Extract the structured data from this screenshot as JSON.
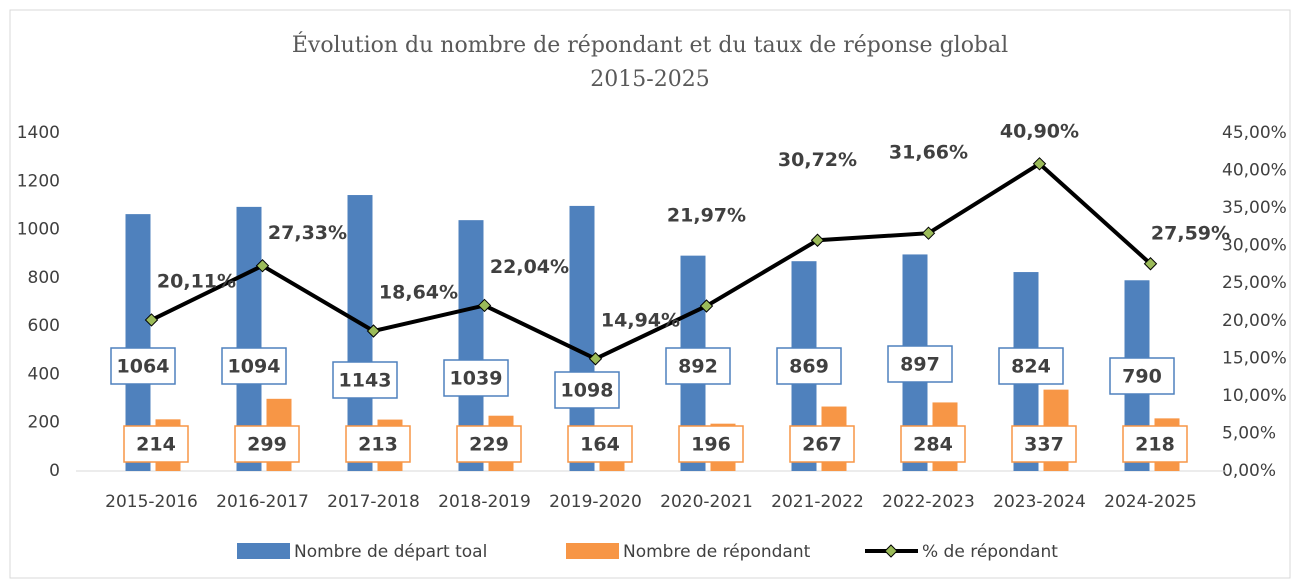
{
  "chart_data": {
    "type": "bar-line",
    "title": "Évolution du nombre de répondant et du taux de réponse global",
    "subtitle": "2015-2025",
    "categories": [
      "2015-2016",
      "2016-2017",
      "2017-2018",
      "2018-2019",
      "2019-2020",
      "2020-2021",
      "2021-2022",
      "2022-2023",
      "2023-2024",
      "2024-2025"
    ],
    "series": [
      {
        "name": "Nombre de départ toal",
        "type": "bar",
        "color": "#4f81bd",
        "values": [
          1064,
          1094,
          1143,
          1039,
          1098,
          892,
          869,
          897,
          824,
          790
        ]
      },
      {
        "name": "Nombre de répondant",
        "type": "bar",
        "color": "#f79646",
        "values": [
          214,
          299,
          213,
          229,
          164,
          196,
          267,
          284,
          337,
          218
        ]
      },
      {
        "name": "% de répondant",
        "type": "line",
        "axis": "y2",
        "color": "#000000",
        "marker_color": "#9bbb59",
        "values": [
          20.11,
          27.33,
          18.64,
          22.04,
          14.94,
          21.97,
          30.72,
          31.66,
          40.9,
          27.59
        ],
        "value_labels": [
          "20,11%",
          "27,33%",
          "18,64%",
          "22,04%",
          "14,94%",
          "21,97%",
          "30,72%",
          "31,66%",
          "40,90%",
          "27,59%"
        ]
      }
    ],
    "ylim": [
      0,
      1400
    ],
    "yticks": [
      0,
      200,
      400,
      600,
      800,
      1000,
      1200,
      1400
    ],
    "y2lim": [
      0,
      45
    ],
    "y2ticks": [
      {
        "value": 0,
        "label": "0,00%"
      },
      {
        "value": 5,
        "label": "5,00%"
      },
      {
        "value": 10,
        "label": "10,00%"
      },
      {
        "value": 15,
        "label": "15,00%"
      },
      {
        "value": 20,
        "label": "20,00%"
      },
      {
        "value": 25,
        "label": "25,00%"
      },
      {
        "value": 30,
        "label": "30,00%"
      },
      {
        "value": 35,
        "label": "35,00%"
      },
      {
        "value": 40,
        "label": "40,00%"
      },
      {
        "value": 45,
        "label": "45,00%"
      }
    ],
    "grid": false,
    "legend": "bottom"
  }
}
